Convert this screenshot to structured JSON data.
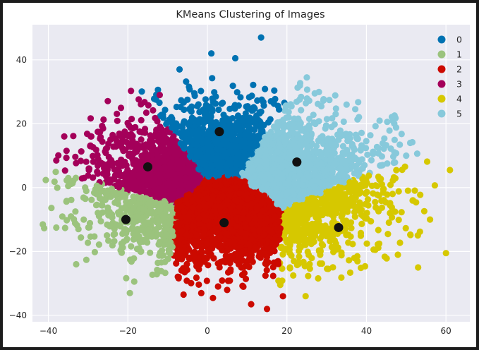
{
  "chart_data": {
    "type": "scatter",
    "title": "KMeans Clustering of Images",
    "xlabel": "",
    "ylabel": "",
    "xlim": [
      -44,
      66
    ],
    "ylim": [
      -42,
      51
    ],
    "xticks": [
      -40,
      -20,
      0,
      20,
      40,
      60
    ],
    "yticks": [
      40,
      20,
      0,
      -20,
      -40
    ],
    "grid": true,
    "legend_position": "top-right",
    "plot_background": "#eaeaf2",
    "series": [
      {
        "name": "0",
        "color": "#0072b2",
        "center": [
          3,
          17.5
        ]
      },
      {
        "name": "1",
        "color": "#9bc37d",
        "center": [
          -20.5,
          -10
        ]
      },
      {
        "name": "2",
        "color": "#cc0a00",
        "center": [
          4.2,
          -11
        ]
      },
      {
        "name": "3",
        "color": "#a4005a",
        "center": [
          -15,
          6.5
        ]
      },
      {
        "name": "4",
        "color": "#d6c800",
        "center": [
          33,
          -12.5
        ]
      },
      {
        "name": "5",
        "color": "#87c9db",
        "center": [
          22.5,
          8
        ]
      }
    ],
    "centroid_color": "#111111"
  }
}
